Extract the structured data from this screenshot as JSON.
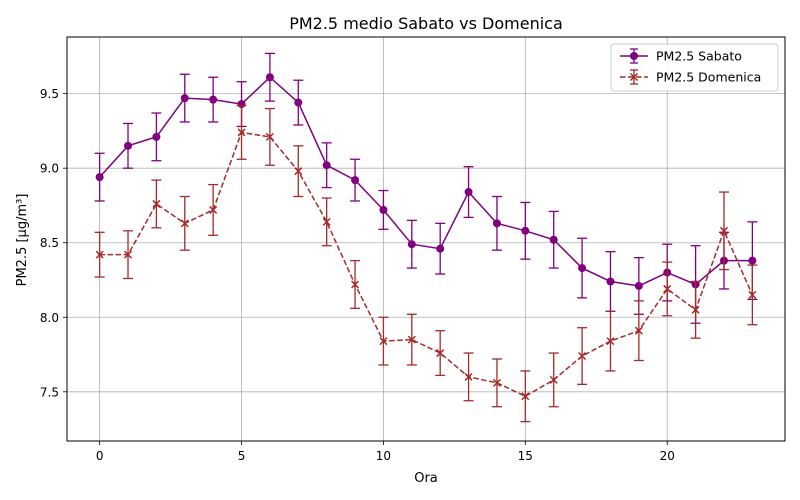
{
  "chart_data": {
    "type": "line",
    "title": "PM2.5 medio Sabato vs Domenica",
    "xlabel": "Ora",
    "ylabel": "PM2.5 [µg/m³]",
    "xlim": [
      -1.15,
      24.15
    ],
    "ylim": [
      7.17,
      9.88
    ],
    "xticks": [
      0,
      5,
      10,
      15,
      20
    ],
    "yticks": [
      7.5,
      8.0,
      8.5,
      9.0,
      9.5
    ],
    "xtick_labels": [
      "0",
      "5",
      "10",
      "15",
      "20"
    ],
    "ytick_labels": [
      "7.5",
      "8.0",
      "8.5",
      "9.0",
      "9.5"
    ],
    "grid": true,
    "legend_position": "top-right",
    "x": [
      0,
      1,
      2,
      3,
      4,
      5,
      6,
      7,
      8,
      9,
      10,
      11,
      12,
      13,
      14,
      15,
      16,
      17,
      18,
      19,
      20,
      21,
      22,
      23
    ],
    "series": [
      {
        "name": "PM2.5 Sabato",
        "color": "#800080",
        "marker": "circle",
        "line_style": "solid",
        "values": [
          8.94,
          9.15,
          9.21,
          9.47,
          9.46,
          9.43,
          9.61,
          9.44,
          9.02,
          8.92,
          8.72,
          8.49,
          8.46,
          8.84,
          8.63,
          8.58,
          8.52,
          8.33,
          8.24,
          8.21,
          8.3,
          8.22,
          8.38,
          8.38
        ],
        "errors": [
          0.16,
          0.15,
          0.16,
          0.16,
          0.15,
          0.15,
          0.16,
          0.15,
          0.15,
          0.14,
          0.13,
          0.16,
          0.17,
          0.17,
          0.18,
          0.19,
          0.19,
          0.2,
          0.2,
          0.19,
          0.19,
          0.26,
          0.19,
          0.26
        ]
      },
      {
        "name": "PM2.5 Domenica",
        "color": "#a52a2a",
        "marker": "x",
        "line_style": "dashed",
        "values": [
          8.42,
          8.42,
          8.76,
          8.63,
          8.72,
          9.24,
          9.21,
          8.98,
          8.64,
          8.22,
          7.84,
          7.85,
          7.76,
          7.6,
          7.56,
          7.47,
          7.58,
          7.74,
          7.84,
          7.91,
          8.19,
          8.05,
          8.58,
          8.15
        ],
        "errors": [
          0.15,
          0.16,
          0.16,
          0.18,
          0.17,
          0.18,
          0.19,
          0.17,
          0.16,
          0.16,
          0.16,
          0.17,
          0.15,
          0.16,
          0.16,
          0.17,
          0.18,
          0.19,
          0.2,
          0.2,
          0.18,
          0.19,
          0.26,
          0.2
        ]
      }
    ]
  }
}
